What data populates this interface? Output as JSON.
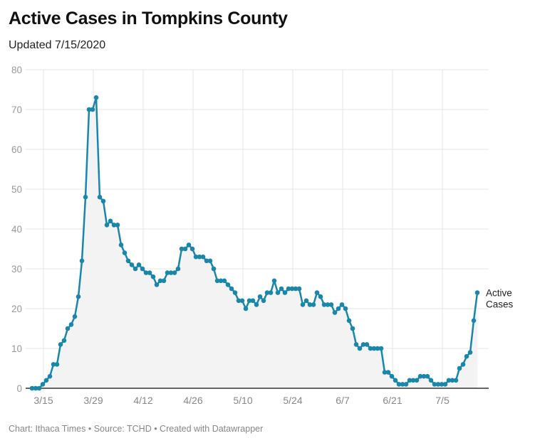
{
  "header": {
    "title": "Active Cases in Tompkins County",
    "subtitle": "Updated 7/15/2020"
  },
  "footer": {
    "text": "Chart: Ithaca Times • Source: TCHD • Created with Datawrapper"
  },
  "colors": {
    "line": "#1a86aa",
    "area": "#f3f3f3",
    "grid": "#e5e5e5",
    "axis": "#333333"
  },
  "chart_data": {
    "type": "area",
    "title": "Active Cases in Tompkins County",
    "subtitle": "Updated 7/15/2020",
    "xlabel": "",
    "ylabel": "",
    "ylim": [
      0,
      80
    ],
    "y_ticks": [
      0,
      10,
      20,
      30,
      40,
      50,
      60,
      70,
      80
    ],
    "x_ticks": [
      {
        "label": "3/15",
        "index": 3
      },
      {
        "label": "3/29",
        "index": 17
      },
      {
        "label": "4/12",
        "index": 31
      },
      {
        "label": "4/26",
        "index": 45
      },
      {
        "label": "5/10",
        "index": 59
      },
      {
        "label": "5/24",
        "index": 73
      },
      {
        "label": "6/7",
        "index": 87
      },
      {
        "label": "6/21",
        "index": 101
      },
      {
        "label": "7/5",
        "index": 115
      }
    ],
    "grid": true,
    "series": [
      {
        "name": "Active Cases",
        "label_lines": [
          "Active",
          "Cases"
        ],
        "values": [
          0,
          0,
          0,
          1,
          2,
          3,
          6,
          6,
          11,
          12,
          15,
          16,
          18,
          23,
          32,
          48,
          70,
          70,
          73,
          48,
          47,
          41,
          42,
          41,
          41,
          36,
          34,
          32,
          31,
          30,
          31,
          30,
          29,
          29,
          28,
          26,
          27,
          27,
          29,
          29,
          29,
          30,
          35,
          35,
          36,
          35,
          33,
          33,
          33,
          32,
          32,
          30,
          27,
          27,
          27,
          26,
          25,
          24,
          22,
          22,
          20,
          22,
          22,
          21,
          23,
          22,
          24,
          24,
          27,
          24,
          25,
          24,
          25,
          25,
          25,
          25,
          21,
          22,
          21,
          21,
          24,
          23,
          21,
          21,
          21,
          19,
          20,
          21,
          20,
          17,
          15,
          11,
          10,
          11,
          11,
          10,
          10,
          10,
          10,
          4,
          4,
          3,
          2,
          1,
          1,
          1,
          2,
          2,
          2,
          3,
          3,
          3,
          2,
          1,
          1,
          1,
          1,
          2,
          2,
          2,
          5,
          6,
          8,
          9,
          17,
          24
        ]
      }
    ]
  }
}
